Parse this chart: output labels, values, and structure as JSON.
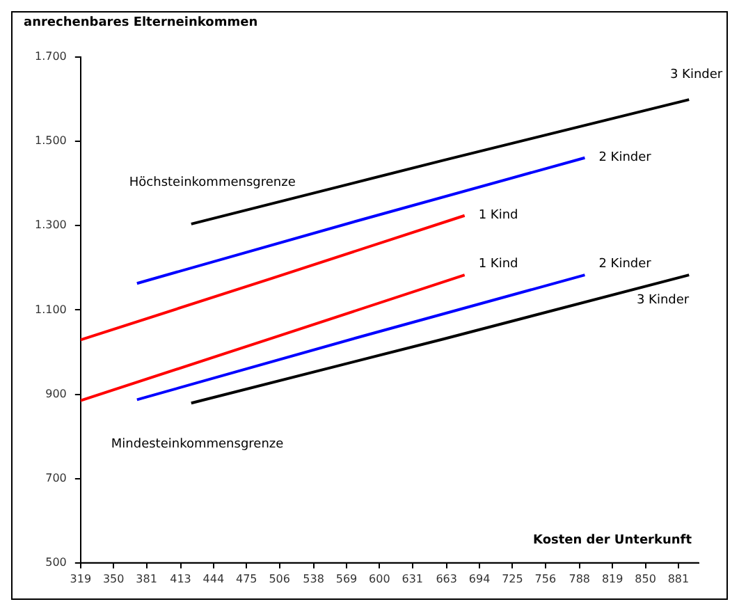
{
  "chart_data": {
    "type": "line",
    "ylabel": "anrechenbares Elterneinkommen",
    "xlabel": "Kosten der Unterkunft",
    "annotations": [
      "Höchsteinkommensgrenze",
      "Mindesteinkommensgrenze"
    ],
    "xlim": [
      319,
      900
    ],
    "xticks": [
      319,
      350,
      381,
      413,
      444,
      475,
      506,
      538,
      569,
      600,
      631,
      663,
      694,
      725,
      756,
      788,
      819,
      850,
      881
    ],
    "ylim": [
      500,
      1700
    ],
    "yticks": [
      {
        "value": 500,
        "label": "500"
      },
      {
        "value": 700,
        "label": "700"
      },
      {
        "value": 900,
        "label": "900"
      },
      {
        "value": 1100,
        "label": "1.100"
      },
      {
        "value": 1300,
        "label": "1.300"
      },
      {
        "value": 1500,
        "label": "1.500"
      },
      {
        "value": 1700,
        "label": "1.700"
      }
    ],
    "grid": false,
    "legend": false,
    "marker": "none",
    "line_style": "solid",
    "series": [
      {
        "name": "3 Kinder",
        "color": "#000000",
        "x": [
          423,
          660,
          891
        ],
        "values": [
          1304,
          1455,
          1599
        ]
      },
      {
        "name": "2 Kinder",
        "color": "#0000ff",
        "x": [
          372,
          580,
          793
        ],
        "values": [
          1163,
          1312,
          1461
        ]
      },
      {
        "name": "1 Kind",
        "color": "#ff0000",
        "x": [
          319,
          500,
          680
        ],
        "values": [
          1029,
          1176,
          1324
        ]
      },
      {
        "name": "1 Kind",
        "color": "#ff0000",
        "x": [
          319,
          500,
          680
        ],
        "values": [
          885,
          1034,
          1183
        ]
      },
      {
        "name": "2 Kinder",
        "color": "#0000ff",
        "x": [
          372,
          580,
          793
        ],
        "values": [
          887,
          1035,
          1183
        ]
      },
      {
        "name": "3 Kinder",
        "color": "#000000",
        "x": [
          423,
          660,
          891
        ],
        "values": [
          879,
          1031,
          1183
        ]
      }
    ]
  }
}
